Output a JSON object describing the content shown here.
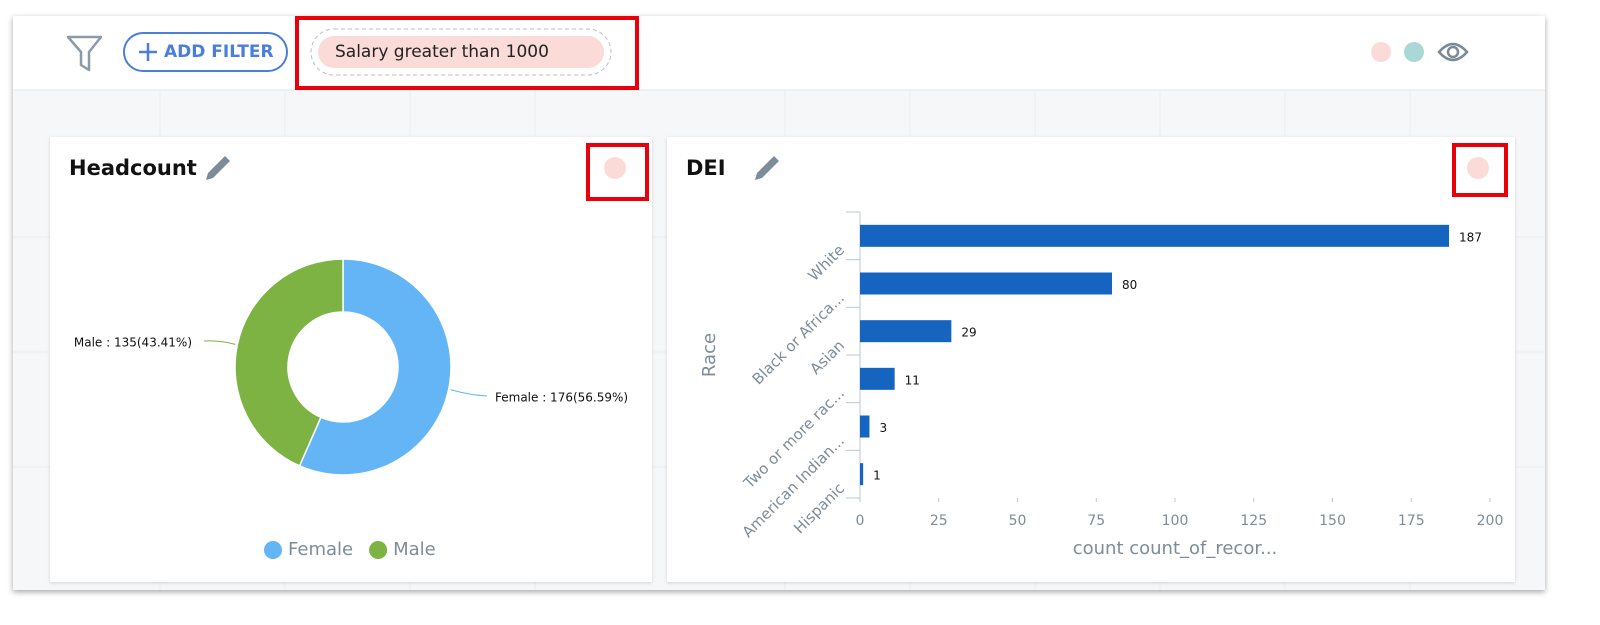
{
  "toolbar": {
    "add_filter": "ADD FILTER",
    "filter_chip": "Salary greater than 1000"
  },
  "chart_data": [
    {
      "type": "pie",
      "title": "Headcount",
      "donut": true,
      "categories": [
        "Female",
        "Male"
      ],
      "values": [
        176,
        135
      ],
      "value_labels": [
        "Female : 176(56.59%)",
        "Male : 135(43.41%)"
      ],
      "colors": [
        "#64b5f6",
        "#7cb342"
      ],
      "legend": "bottom"
    },
    {
      "type": "bar",
      "orientation": "horizontal",
      "title": "DEI",
      "categories": [
        "White",
        "Black or Africa...",
        "Asian",
        "Two or more rac...",
        "American Indian...",
        "Hispanic"
      ],
      "values": [
        187,
        80,
        29,
        11,
        3,
        1
      ],
      "color": "#1565c0",
      "xlim": [
        0,
        200
      ],
      "xticks": [
        0,
        25,
        50,
        75,
        100,
        125,
        150,
        175,
        200
      ],
      "x_label": "count count_of_recor...",
      "y_label": "Race"
    }
  ]
}
